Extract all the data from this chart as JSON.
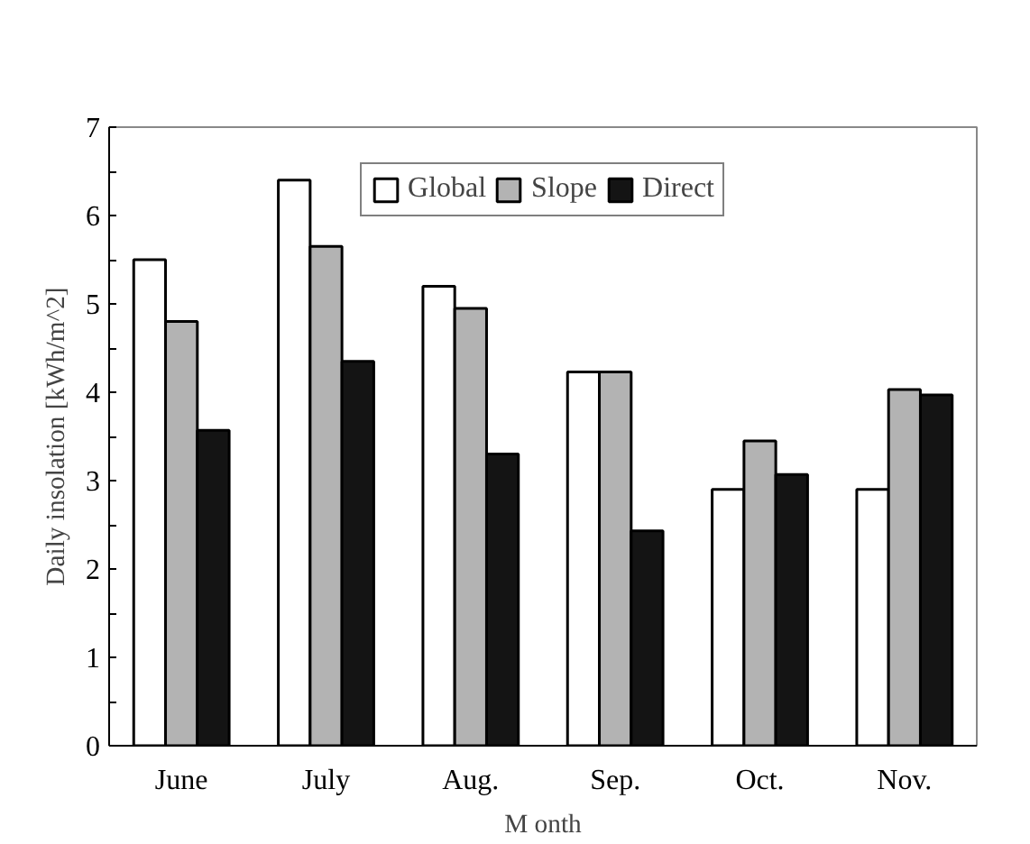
{
  "chart_data": {
    "type": "bar",
    "categories": [
      "June",
      "July",
      "Aug.",
      "Sep.",
      "Oct.",
      "Nov."
    ],
    "series": [
      {
        "name": "Global",
        "color": "#ffffff",
        "values": [
          5.5,
          6.4,
          5.2,
          4.23,
          2.9,
          2.9
        ]
      },
      {
        "name": "Slope",
        "color": "#b3b3b3",
        "values": [
          4.8,
          5.65,
          4.95,
          4.23,
          3.45,
          4.03
        ]
      },
      {
        "name": "Direct",
        "color": "#141414",
        "values": [
          3.57,
          4.35,
          3.3,
          2.43,
          3.07,
          3.97
        ]
      }
    ],
    "xlabel": "M onth",
    "ylabel": "Daily insolation [kWh/m^2]",
    "ylim": [
      0,
      7
    ],
    "yticks": [
      0,
      1,
      2,
      3,
      4,
      5,
      6,
      7
    ],
    "grid": false,
    "legend": "top"
  }
}
